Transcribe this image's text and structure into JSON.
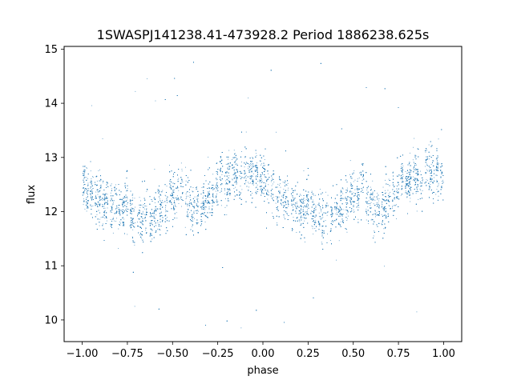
{
  "chart_data": {
    "type": "scatter",
    "title": "1SWASPJ141238.41-473928.2 Period 1886238.625s",
    "xlabel": "phase",
    "ylabel": "flux",
    "xlim": [
      -1.1,
      1.1
    ],
    "ylim": [
      9.6,
      15.05
    ],
    "xticks": [
      -1.0,
      -0.75,
      -0.5,
      -0.25,
      0.0,
      0.25,
      0.5,
      0.75,
      1.0
    ],
    "xtick_labels": [
      "−1.00",
      "−0.75",
      "−0.50",
      "−0.25",
      "0.00",
      "0.25",
      "0.50",
      "0.75",
      "1.00"
    ],
    "yticks": [
      10,
      11,
      12,
      13,
      14,
      15
    ],
    "ytick_labels": [
      "10",
      "11",
      "12",
      "13",
      "14",
      "15"
    ],
    "marker_color": "#1f77b4",
    "grid": false,
    "series": [
      {
        "x_range": [
          -1.0,
          1.0
        ],
        "folded_period": 1.0,
        "profile_phase": [
          0.0,
          0.05,
          0.1,
          0.15,
          0.2,
          0.25,
          0.3,
          0.35,
          0.4,
          0.45,
          0.5,
          0.55,
          0.6,
          0.65,
          0.7,
          0.75,
          0.8,
          0.85,
          0.9,
          0.95,
          1.0
        ],
        "profile_flux": [
          12.55,
          12.4,
          12.2,
          12.15,
          12.1,
          12.05,
          12.0,
          11.95,
          12.05,
          12.2,
          12.3,
          12.35,
          12.15,
          12.05,
          12.25,
          12.45,
          12.55,
          12.65,
          12.75,
          12.65,
          12.55
        ],
        "typical_spread": 0.7,
        "outlier_flux_range": [
          9.85,
          14.8
        ]
      }
    ]
  }
}
